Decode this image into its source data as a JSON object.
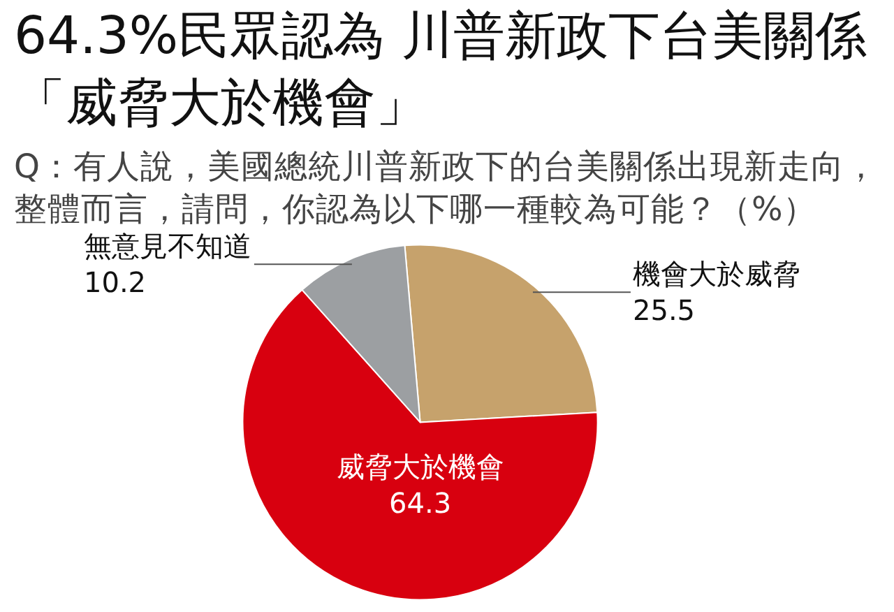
{
  "chart_data": {
    "type": "pie",
    "title": "64.3%民眾認為 川普新政下台美關係「威脅大於機會」",
    "subtitle": "Q：有人說，美國總統川普新政下的台美關係出現新走向，整體而言，請問，你認為以下哪一種較為可能？（%）",
    "categories": [
      "機會大於威脅",
      "威脅大於機會",
      "無意見不知道"
    ],
    "values": [
      25.5,
      64.3,
      10.2
    ],
    "colors": [
      "#c6a26c",
      "#d8000f",
      "#9c9fa2"
    ],
    "data_labels": true,
    "legend": false
  }
}
